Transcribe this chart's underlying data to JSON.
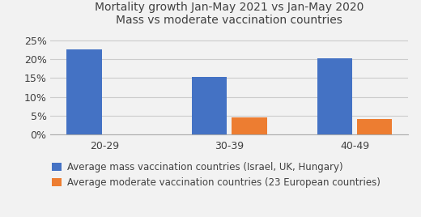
{
  "title_line1": "Mortality growth Jan-May 2021 vs Jan-May 2020",
  "title_line2": "Mass vs moderate vaccination countries",
  "categories": [
    "20-29",
    "30-39",
    "40-49"
  ],
  "mass_values": [
    0.225,
    0.152,
    0.202
  ],
  "moderate_values": [
    0.0,
    0.046,
    0.041
  ],
  "mass_color": "#4472C4",
  "moderate_color": "#ED7D31",
  "mass_label": "Average mass vaccination countries (Israel, UK, Hungary)",
  "moderate_label": "Average moderate vaccination countries (23 European countries)",
  "ylim": [
    0,
    0.27
  ],
  "yticks": [
    0.0,
    0.05,
    0.1,
    0.15,
    0.2,
    0.25
  ],
  "ytick_labels": [
    "0%",
    "5%",
    "10%",
    "15%",
    "20%",
    "25%"
  ],
  "background_color": "#f2f2f2",
  "plot_bg_color": "#f2f2f2",
  "bar_width": 0.28,
  "bar_gap": 0.04,
  "legend_fontsize": 8.5,
  "title_fontsize": 10,
  "tick_fontsize": 9
}
